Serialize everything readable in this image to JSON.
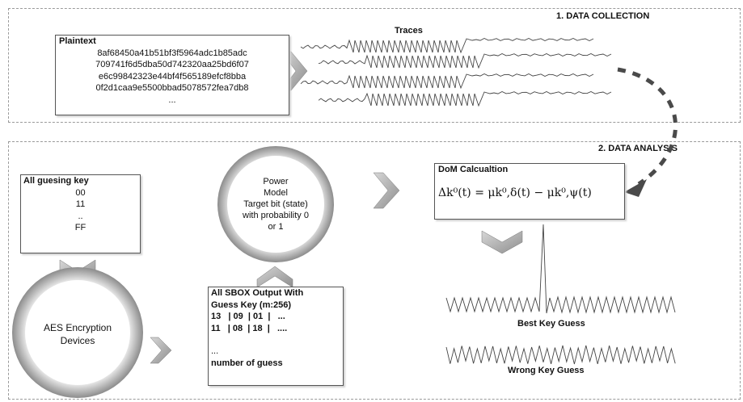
{
  "sections": {
    "collection_title": "1. DATA COLLECTION",
    "analysis_title": "2. DATA ANALYSIS"
  },
  "plaintext_box": {
    "title": "Plaintext",
    "lines": [
      "8af68450a41b51bf3f5964adc1b85adc",
      "709741f6d5dba50d742320aa25bd6f07",
      "e6c99842323e44bf4f565189efcf8bba",
      "0f2d1caa9e5500bbad5078572fea7db8",
      "..."
    ]
  },
  "traces_label": "Traces",
  "guess_key_box": {
    "title": "All guesing key",
    "lines": [
      "00",
      "11",
      "..",
      "FF"
    ]
  },
  "power_model": {
    "lines": [
      "Power",
      "Model",
      "Target bit (state)",
      "with probability 0",
      "or 1"
    ]
  },
  "aes_device": {
    "lines": [
      "AES Encryption",
      "Devices"
    ]
  },
  "sbox_box": {
    "title_lines": [
      "All SBOX Output With",
      "Guess Key (m:256)"
    ],
    "rows": [
      "13   | 09  | 01  |   ...",
      "11   | 08  | 18  |   ...."
    ],
    "ellipsis": "...",
    "footer": "number of guess"
  },
  "dom_box": {
    "title": "DoM Calcualtion",
    "formula": "Δk⁰(t) = μk⁰,δ(t) − μk⁰,ψ(t)"
  },
  "best_key_label": "Best Key Guess",
  "wrong_key_label": "Wrong Key Guess",
  "colors": {
    "arrow_fill": "#b4b4b4",
    "arrow_dark": "#7d7d7d",
    "dash": "#9a9a9a",
    "trace": "#444444",
    "dom_arrow": "#4a4a4a"
  }
}
